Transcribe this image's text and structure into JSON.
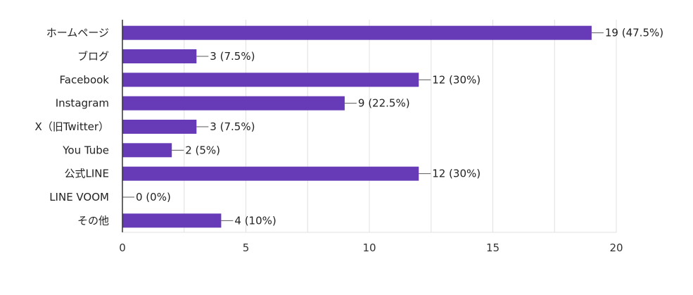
{
  "colors": {
    "bar": "#673ab7",
    "grid": "#e0e0e0",
    "axis": "#333333",
    "text": "#222222",
    "background": "#ffffff"
  },
  "chart_data": {
    "type": "bar",
    "orientation": "horizontal",
    "categories": [
      "ホームページ",
      "ブログ",
      "Facebook",
      "Instagram",
      "X（旧Twitter）",
      "You Tube",
      "公式LINE",
      "LINE VOOM",
      "その他"
    ],
    "values": [
      19,
      3,
      12,
      9,
      3,
      2,
      12,
      0,
      4
    ],
    "data_labels": [
      "19 (47.5%)",
      "3 (7.5%)",
      "12 (30%)",
      "9 (22.5%)",
      "3 (7.5%)",
      "2 (5%)",
      "12 (30%)",
      "0 (0%)",
      "4 (10%)"
    ],
    "x_ticks": [
      "0",
      "5",
      "10",
      "15",
      "20"
    ],
    "xlim": [
      0,
      20
    ],
    "grid": true,
    "title": "",
    "xlabel": "",
    "ylabel": ""
  }
}
